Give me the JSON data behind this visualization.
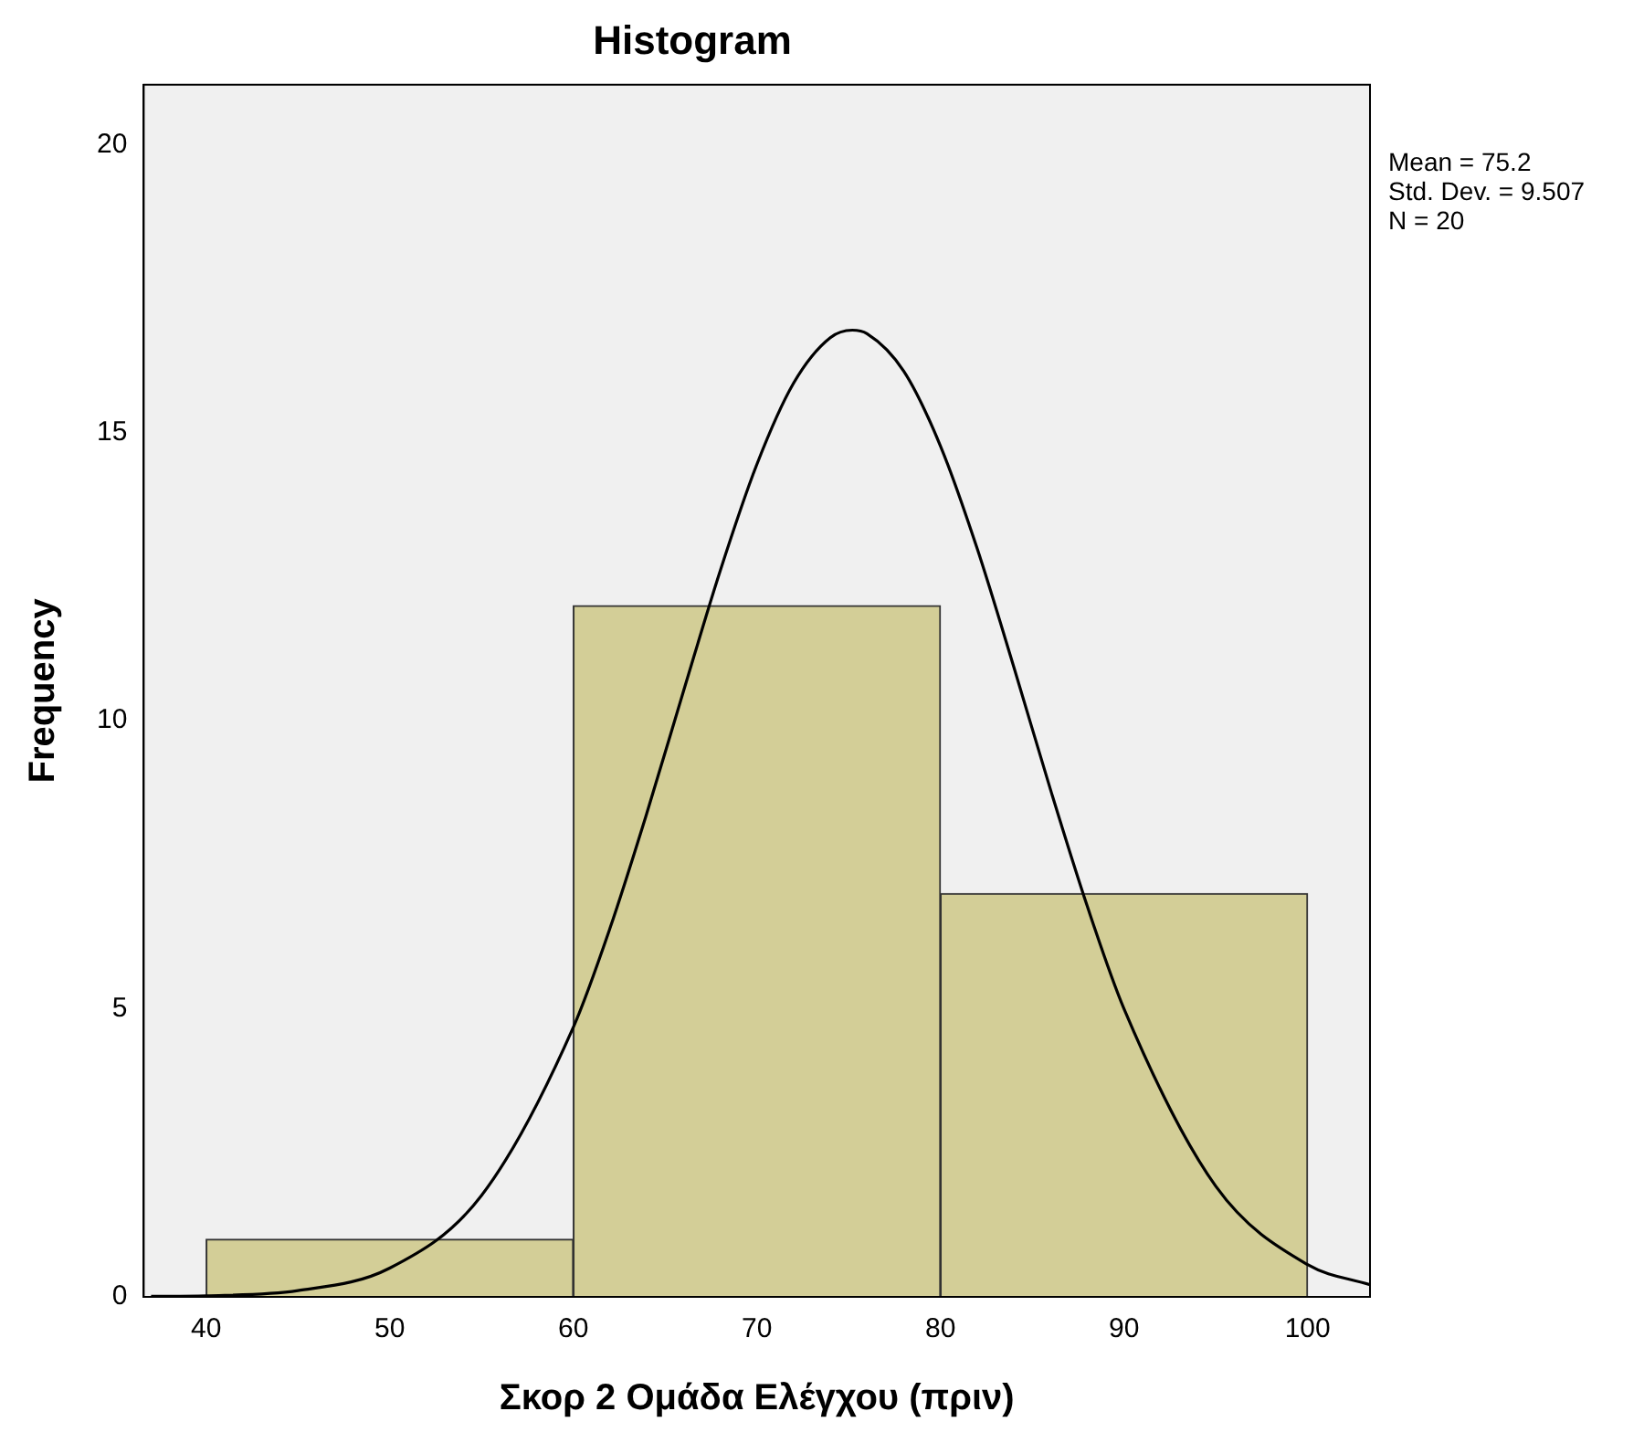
{
  "chart_data": {
    "type": "histogram",
    "title": "Histogram",
    "xlabel": "Σκορ 2 Ομάδα Ελέγχου (πριν)",
    "ylabel": "Frequency",
    "bins": [
      40,
      60,
      80,
      100
    ],
    "values": [
      1,
      12,
      7
    ],
    "color": "#d3ce97",
    "series": [
      {
        "type": "line",
        "color": "#000000",
        "marker": "none",
        "x": [
          37,
          40,
          45,
          50,
          55,
          60,
          62,
          64,
          66,
          68,
          70,
          72,
          74,
          75.2,
          76,
          78,
          80,
          82,
          84,
          86,
          88,
          90,
          95,
          100,
          103.4
        ],
        "values": [
          0.01,
          0.02,
          0.11,
          0.5,
          1.76,
          4.68,
          6.4,
          8.39,
          10.51,
          12.6,
          14.45,
          15.86,
          16.65,
          16.78,
          16.72,
          16.07,
          14.77,
          12.99,
          10.93,
          8.8,
          6.78,
          5.0,
          1.92,
          0.56,
          0.21
        ]
      }
    ],
    "xlim": [
      36.6,
      103.4
    ],
    "xticks": [
      40,
      50,
      60,
      70,
      80,
      90,
      100
    ],
    "ylim": [
      0,
      21.04
    ],
    "yticks": [
      0,
      5,
      10,
      15,
      20
    ],
    "grid": false,
    "legend": false,
    "annotations": [
      "Mean = 75.2",
      "Std. Dev. = 9.507",
      "N = 20"
    ]
  }
}
